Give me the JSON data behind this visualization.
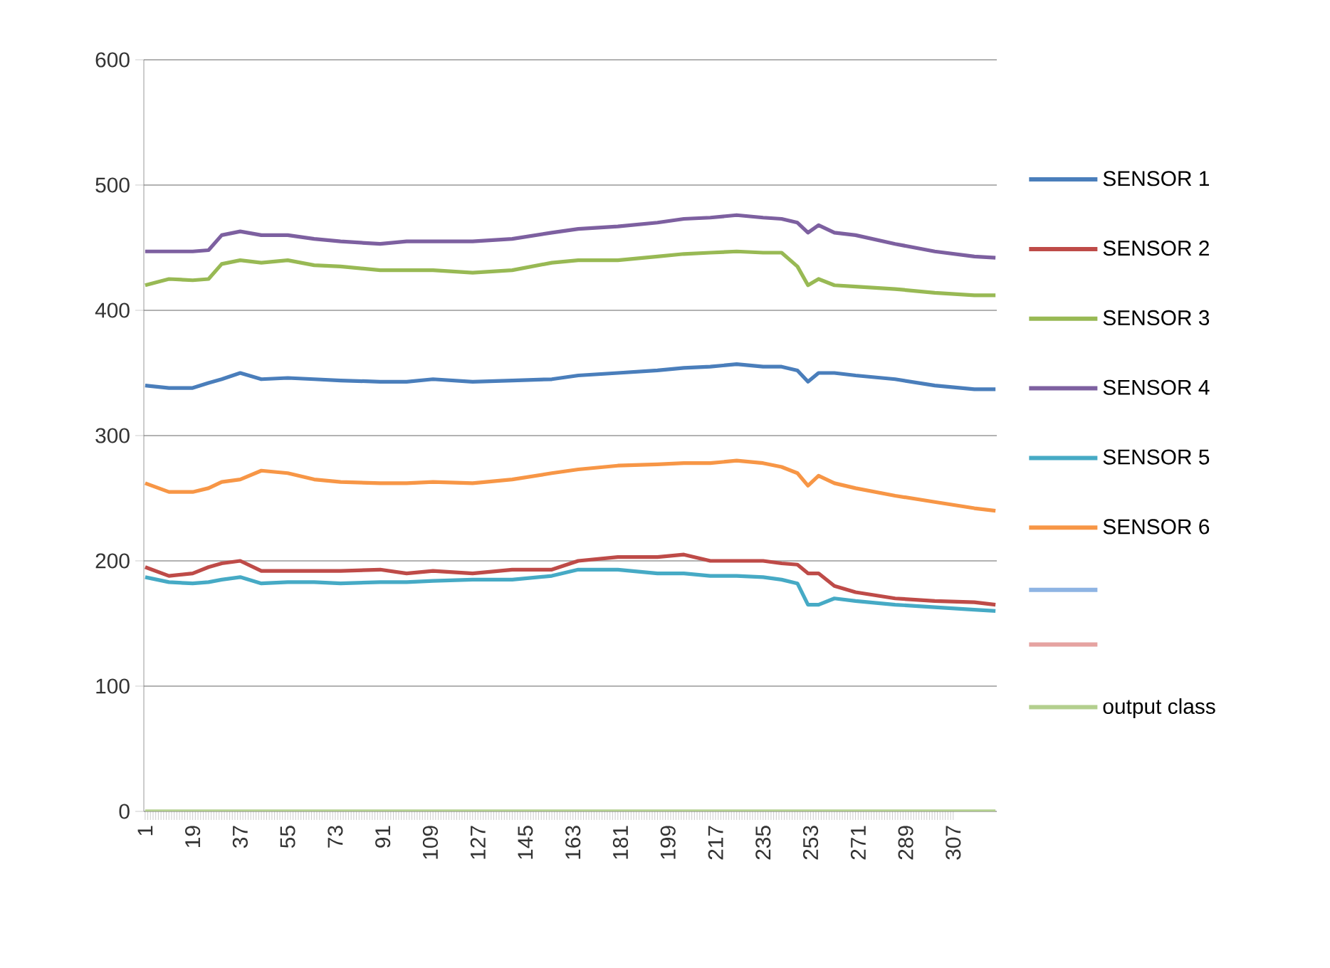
{
  "chart_data": {
    "type": "line",
    "x": [
      1,
      10,
      19,
      25,
      30,
      37,
      45,
      55,
      65,
      75,
      90,
      100,
      110,
      125,
      140,
      155,
      165,
      180,
      195,
      205,
      215,
      225,
      235,
      242,
      248,
      252,
      256,
      262,
      270,
      285,
      300,
      315,
      323
    ],
    "xlim": [
      0.5,
      323.5
    ],
    "xticks": [
      1,
      19,
      37,
      55,
      73,
      91,
      109,
      127,
      145,
      163,
      181,
      199,
      217,
      235,
      253,
      271,
      289,
      307
    ],
    "ylim": [
      0,
      600
    ],
    "yticks": [
      0,
      100,
      200,
      300,
      400,
      500,
      600
    ],
    "grid": "y",
    "legend": "right",
    "series": [
      {
        "name": "SENSOR 1",
        "color": "#4a7ebb",
        "values": [
          340,
          338,
          338,
          342,
          345,
          350,
          345,
          346,
          345,
          344,
          343,
          343,
          345,
          343,
          344,
          345,
          348,
          350,
          352,
          354,
          355,
          357,
          355,
          355,
          352,
          343,
          350,
          350,
          348,
          345,
          340,
          337,
          337
        ]
      },
      {
        "name": "SENSOR 2",
        "color": "#be4b48",
        "values": [
          195,
          188,
          190,
          195,
          198,
          200,
          192,
          192,
          192,
          192,
          193,
          190,
          192,
          190,
          193,
          193,
          200,
          203,
          203,
          205,
          200,
          200,
          200,
          198,
          197,
          190,
          190,
          180,
          175,
          170,
          168,
          167,
          165
        ]
      },
      {
        "name": "SENSOR 3",
        "color": "#98b954",
        "values": [
          420,
          425,
          424,
          425,
          437,
          440,
          438,
          440,
          436,
          435,
          432,
          432,
          432,
          430,
          432,
          438,
          440,
          440,
          443,
          445,
          446,
          447,
          446,
          446,
          435,
          420,
          425,
          420,
          419,
          417,
          414,
          412,
          412
        ]
      },
      {
        "name": "SENSOR 4",
        "color": "#7d60a0",
        "values": [
          447,
          447,
          447,
          448,
          460,
          463,
          460,
          460,
          457,
          455,
          453,
          455,
          455,
          455,
          457,
          462,
          465,
          467,
          470,
          473,
          474,
          476,
          474,
          473,
          470,
          462,
          468,
          462,
          460,
          453,
          447,
          443,
          442
        ]
      },
      {
        "name": "SENSOR 5",
        "color": "#46aac5",
        "values": [
          187,
          183,
          182,
          183,
          185,
          187,
          182,
          183,
          183,
          182,
          183,
          183,
          184,
          185,
          185,
          188,
          193,
          193,
          190,
          190,
          188,
          188,
          187,
          185,
          182,
          165,
          165,
          170,
          168,
          165,
          163,
          161,
          160
        ]
      },
      {
        "name": "SENSOR 6",
        "color": "#f79646",
        "values": [
          262,
          255,
          255,
          258,
          263,
          265,
          272,
          270,
          265,
          263,
          262,
          262,
          263,
          262,
          265,
          270,
          273,
          276,
          277,
          278,
          278,
          280,
          278,
          275,
          270,
          260,
          268,
          262,
          258,
          252,
          247,
          242,
          240
        ]
      },
      {
        "color": "#8eb4e3",
        "values": [
          null,
          null,
          null,
          null,
          null,
          null,
          null,
          null,
          null,
          null,
          null,
          null,
          null,
          null,
          null,
          null,
          null,
          null,
          null,
          null,
          null,
          null,
          null,
          null,
          null,
          null,
          null,
          null,
          null,
          null,
          null,
          null,
          null
        ]
      },
      {
        "color": "#e6a3a1",
        "values": [
          null,
          null,
          null,
          null,
          null,
          null,
          null,
          null,
          null,
          null,
          null,
          null,
          null,
          null,
          null,
          null,
          null,
          null,
          null,
          null,
          null,
          null,
          null,
          null,
          null,
          null,
          null,
          null,
          null,
          null,
          null,
          null,
          null
        ]
      },
      {
        "name": "output class",
        "color": "#b3cf8e",
        "values": [
          0,
          0,
          0,
          0,
          0,
          0,
          0,
          0,
          0,
          0,
          0,
          0,
          0,
          0,
          0,
          0,
          0,
          0,
          0,
          0,
          0,
          0,
          0,
          0,
          0,
          0,
          0,
          0,
          0,
          0,
          0,
          0,
          0
        ]
      }
    ]
  }
}
